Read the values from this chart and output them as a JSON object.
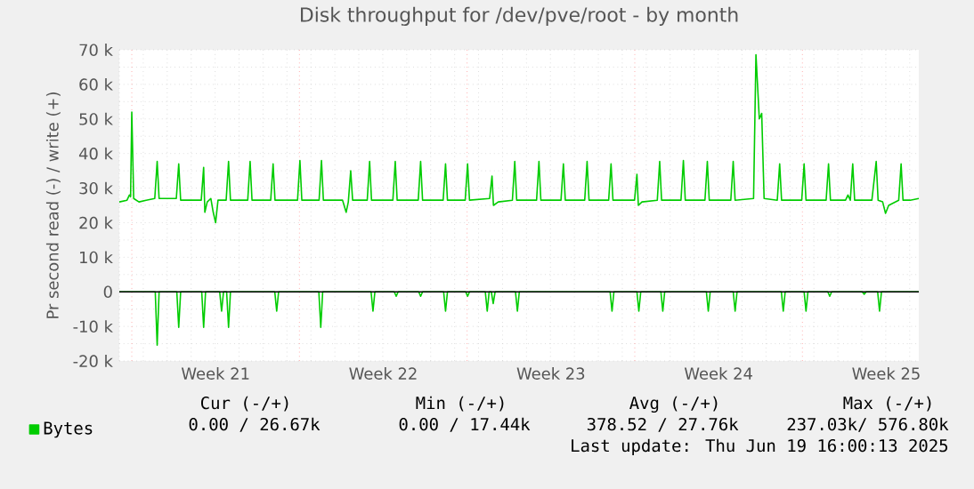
{
  "chart_data": {
    "type": "line",
    "title": "Disk throughput for /dev/pve/root - by month",
    "ylabel": "Pr second read (-) / write (+)",
    "xlim": [
      "2025-05-17T11:30",
      "2025-06-19T20:38"
    ],
    "ylim": [
      -20000,
      70000
    ],
    "xticks": [
      {
        "value": "2025-05-18",
        "label": null
      },
      {
        "value": "2025-05-25",
        "label": null
      },
      {
        "value": "2025-06-01",
        "label": null
      },
      {
        "value": "2025-06-08",
        "label": null
      },
      {
        "value": "2025-06-15",
        "label": null
      },
      {
        "value": "2025-05-21T12:00",
        "label": "Week 21"
      },
      {
        "value": "2025-05-28T12:00",
        "label": "Week 22"
      },
      {
        "value": "2025-06-04T12:00",
        "label": "Week 23"
      },
      {
        "value": "2025-06-11T12:00",
        "label": "Week 24"
      },
      {
        "value": "2025-06-18T12:00",
        "label": "Week 25"
      }
    ],
    "yticks": [
      {
        "value": -20000,
        "label": "-20 k"
      },
      {
        "value": -10000,
        "label": "-10 k"
      },
      0,
      {
        "value": 10000,
        "label": "10 k"
      },
      {
        "value": 20000,
        "label": "20 k"
      },
      {
        "value": 30000,
        "label": "30 k"
      },
      {
        "value": 40000,
        "label": "40 k"
      },
      {
        "value": 50000,
        "label": "50 k"
      },
      {
        "value": 60000,
        "label": "60 k"
      },
      {
        "value": 70000,
        "label": "70 k"
      }
    ],
    "grid": true,
    "legend": "bottom",
    "marker": "none",
    "line_style": "solid",
    "ref_lines": [
      {
        "axis": "y",
        "value": 0,
        "color": "#000000"
      }
    ],
    "series": [
      {
        "name": "Bytes",
        "color": "#00cc00",
        "x": [
          "2025-05-17T11:30",
          "2025-05-17T19:12",
          "2025-05-17T21:36",
          "2025-05-17T22:48",
          "2025-05-18T00:00",
          "2025-05-18T01:55",
          "2025-05-18T07:12",
          "2025-05-18T14:24",
          "2025-05-18T23:02",
          "2025-05-19T01:26",
          "2025-05-19T03:22",
          "2025-05-19T20:38",
          "2025-05-19T23:02",
          "2025-05-20T00:58",
          "2025-05-20T21:36",
          "2025-05-21T00:00",
          "2025-05-21T01:12",
          "2025-05-21T03:36",
          "2025-05-21T07:12",
          "2025-05-21T09:36",
          "2025-05-21T12:00",
          "2025-05-21T14:24",
          "2025-05-21T22:34",
          "2025-05-22T00:58",
          "2025-05-22T02:53",
          "2025-05-22T20:10",
          "2025-05-22T22:34",
          "2025-05-23T00:29",
          "2025-05-23T19:12",
          "2025-05-23T21:36",
          "2025-05-23T23:31",
          "2025-05-24T22:05",
          "2025-05-25T00:29",
          "2025-05-25T02:24",
          "2025-05-25T19:41",
          "2025-05-25T22:05",
          "2025-05-26T00:00",
          "2025-05-26T19:12",
          "2025-05-26T22:48",
          "2025-05-27T00:58",
          "2025-05-27T03:22",
          "2025-05-27T05:17",
          "2025-05-27T19:55",
          "2025-05-27T22:19",
          "2025-05-28T00:14",
          "2025-05-28T21:36",
          "2025-05-29T00:00",
          "2025-05-29T01:55",
          "2025-05-29T23:02",
          "2025-05-30T01:26",
          "2025-05-30T03:22",
          "2025-05-31T00:00",
          "2025-05-31T02:24",
          "2025-05-31T04:19",
          "2025-05-31T22:05",
          "2025-06-01T00:29",
          "2025-06-01T02:24",
          "2025-06-01T22:34",
          "2025-06-02T00:58",
          "2025-06-02T02:24",
          "2025-06-02T07:12",
          "2025-06-02T21:22",
          "2025-06-02T23:46",
          "2025-06-03T01:41",
          "2025-06-03T21:36",
          "2025-06-04T00:00",
          "2025-06-04T01:55",
          "2025-06-04T22:05",
          "2025-06-05T00:29",
          "2025-06-05T02:24",
          "2025-06-05T21:50",
          "2025-06-06T00:14",
          "2025-06-06T02:10",
          "2025-06-06T21:50",
          "2025-06-07T00:14",
          "2025-06-07T02:10",
          "2025-06-07T23:46",
          "2025-06-08T02:10",
          "2025-06-08T03:36",
          "2025-06-08T07:12",
          "2025-06-08T22:34",
          "2025-06-09T00:58",
          "2025-06-09T02:53",
          "2025-06-09T22:19",
          "2025-06-10T00:43",
          "2025-06-10T02:38",
          "2025-06-10T22:19",
          "2025-06-11T00:43",
          "2025-06-11T02:38",
          "2025-06-12T00:14",
          "2025-06-12T02:38",
          "2025-06-12T04:34",
          "2025-06-12T23:02",
          "2025-06-13T01:26",
          "2025-06-13T04:48",
          "2025-06-13T07:12",
          "2025-06-13T09:36",
          "2025-06-13T22:48",
          "2025-06-14T01:12",
          "2025-06-14T03:07",
          "2025-06-14T23:17",
          "2025-06-15T01:41",
          "2025-06-15T03:36",
          "2025-06-15T23:46",
          "2025-06-16T02:10",
          "2025-06-16T04:05",
          "2025-06-16T19:12",
          "2025-06-16T21:36",
          "2025-06-17T00:00",
          "2025-06-17T02:24",
          "2025-06-17T04:19",
          "2025-06-17T21:36",
          "2025-06-18T01:55",
          "2025-06-18T03:50",
          "2025-06-18T08:24",
          "2025-06-18T11:17",
          "2025-06-18T14:24",
          "2025-06-19T00:29",
          "2025-06-19T02:53",
          "2025-06-19T04:48",
          "2025-06-19T12:00",
          "2025-06-19T20:38"
        ],
        "values": [
          26000,
          26500,
          28000,
          27500,
          52000,
          27000,
          26000,
          26500,
          27000,
          37700,
          27000,
          27000,
          37000,
          26500,
          26500,
          36000,
          23000,
          26000,
          27000,
          23000,
          20000,
          26500,
          26500,
          37700,
          26500,
          26500,
          37700,
          26500,
          26500,
          37000,
          26500,
          26500,
          38000,
          26500,
          26500,
          38000,
          26500,
          26500,
          23000,
          26000,
          35000,
          26500,
          26500,
          37700,
          26500,
          26500,
          37700,
          26500,
          26500,
          37700,
          26500,
          26500,
          37000,
          26500,
          26500,
          37000,
          26500,
          27000,
          33500,
          25000,
          26000,
          26500,
          37700,
          26500,
          26500,
          37700,
          26500,
          26500,
          37000,
          26500,
          26500,
          37700,
          26500,
          26500,
          37000,
          26500,
          26500,
          34000,
          25000,
          26000,
          26500,
          37700,
          26500,
          26500,
          38000,
          26500,
          26500,
          37700,
          26500,
          26500,
          37700,
          26500,
          27000,
          68600,
          50000,
          51600,
          27000,
          26500,
          37000,
          26500,
          26500,
          37000,
          26500,
          26500,
          37000,
          26500,
          26500,
          28000,
          26500,
          37000,
          26500,
          26500,
          37700,
          26500,
          26000,
          22700,
          25000,
          26500,
          37000,
          26500,
          26500,
          27000
        ]
      },
      {
        "color": "#00cc00",
        "x": [
          "2025-05-17T11:30",
          "2025-05-18T23:31",
          "2025-05-19T01:26",
          "2025-05-19T03:22",
          "2025-05-19T21:07",
          "2025-05-19T23:02",
          "2025-05-20T00:58",
          "2025-05-20T22:05",
          "2025-05-21T00:00",
          "2025-05-21T01:55",
          "2025-05-21T16:05",
          "2025-05-21T18:00",
          "2025-05-21T19:55",
          "2025-05-21T23:02",
          "2025-05-22T00:58",
          "2025-05-22T02:53",
          "2025-05-23T23:17",
          "2025-05-24T01:12",
          "2025-05-24T03:07",
          "2025-05-25T19:26",
          "2025-05-25T21:22",
          "2025-05-25T23:17",
          "2025-05-27T23:46",
          "2025-05-28T01:41",
          "2025-05-28T03:36",
          "2025-05-28T23:02",
          "2025-05-29T00:58",
          "2025-05-29T02:53",
          "2025-05-29T23:31",
          "2025-05-30T01:26",
          "2025-05-30T03:22",
          "2025-05-31T00:29",
          "2025-05-31T02:24",
          "2025-05-31T04:19",
          "2025-05-31T22:34",
          "2025-06-01T00:29",
          "2025-06-01T02:24",
          "2025-06-01T18:14",
          "2025-06-01T20:10",
          "2025-06-01T22:05",
          "2025-06-02T00:14",
          "2025-06-02T02:10",
          "2025-06-02T04:05",
          "2025-06-03T00:29",
          "2025-06-03T02:24",
          "2025-06-03T04:19",
          "2025-06-06T23:17",
          "2025-06-07T01:12",
          "2025-06-07T03:07",
          "2025-06-08T02:10",
          "2025-06-08T04:05",
          "2025-06-08T06:00",
          "2025-06-09T02:10",
          "2025-06-09T04:05",
          "2025-06-09T06:00",
          "2025-06-10T23:46",
          "2025-06-11T01:41",
          "2025-06-11T03:36",
          "2025-06-12T02:38",
          "2025-06-12T04:34",
          "2025-06-12T06:29",
          "2025-06-14T02:53",
          "2025-06-14T04:48",
          "2025-06-14T06:43",
          "2025-06-15T01:41",
          "2025-06-15T03:36",
          "2025-06-15T05:31",
          "2025-06-16T01:26",
          "2025-06-16T03:22",
          "2025-06-16T05:17",
          "2025-06-17T12:00",
          "2025-06-17T13:55",
          "2025-06-17T15:50",
          "2025-06-18T03:22",
          "2025-06-18T05:17",
          "2025-06-18T07:12",
          "2025-06-19T20:38"
        ],
        "values": [
          0,
          0,
          -15400,
          0,
          0,
          -10300,
          0,
          0,
          -10300,
          0,
          0,
          -5600,
          0,
          0,
          -10300,
          0,
          0,
          -5600,
          0,
          0,
          -10300,
          0,
          0,
          -5600,
          0,
          0,
          -1300,
          0,
          0,
          -1300,
          0,
          0,
          -5600,
          0,
          0,
          -1300,
          0,
          0,
          -5600,
          0,
          0,
          -3400,
          0,
          0,
          -5600,
          0,
          0,
          -5600,
          0,
          0,
          -5600,
          0,
          0,
          -5600,
          0,
          0,
          -5600,
          0,
          0,
          -5600,
          0,
          0,
          -5600,
          0,
          0,
          -5600,
          0,
          0,
          -1300,
          0,
          0,
          -700,
          0,
          0,
          -5600,
          0,
          0
        ]
      }
    ],
    "annotations": [
      "Cur (-/+)",
      "Min (-/+)",
      "Avg (-/+)",
      "Max (-/+)",
      "0.00 /  26.67k",
      "0.00 /  17.44k",
      "378.52 /  27.76k",
      "237.03k/ 576.80k",
      "Last update: Thu Jun 19 16:00:13 2025"
    ]
  }
}
